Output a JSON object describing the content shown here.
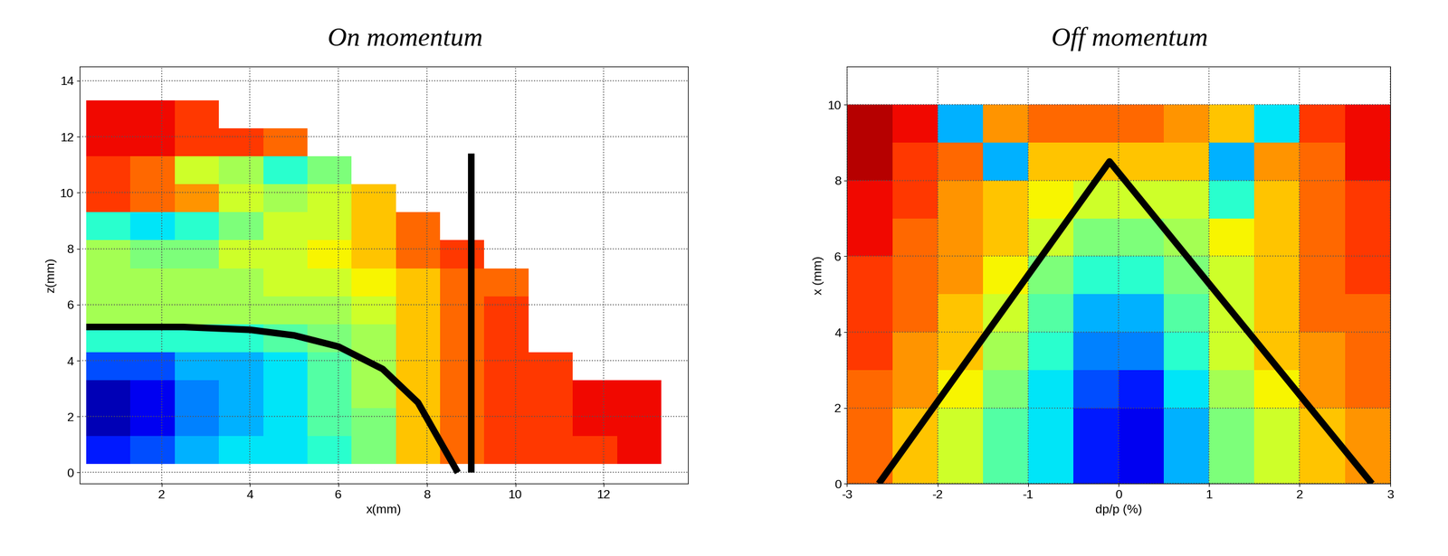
{
  "chart_data": [
    {
      "type": "heatmap",
      "title": "On momentum",
      "x_label": "x(mm)",
      "y_label": "z(mm)",
      "color": "jet",
      "color_range": [
        0,
        1
      ],
      "grid": true,
      "xlim": [
        0.15,
        13.9
      ],
      "ylim": [
        -0.4,
        14.5
      ],
      "xticks": [
        2,
        4,
        6,
        8,
        10,
        12
      ],
      "yticks": [
        0,
        2,
        4,
        6,
        8,
        10,
        12,
        14
      ],
      "x_edges": [
        0.3,
        1.3,
        2.3,
        3.3,
        4.3,
        5.3,
        6.3,
        7.3,
        8.3,
        9.3,
        10.3,
        11.3,
        12.3,
        13.3
      ],
      "y_edges": [
        0.3,
        1.3,
        2.3,
        3.3,
        4.3,
        5.3,
        6.3,
        7.3,
        8.3,
        9.3,
        10.3,
        11.3,
        12.3,
        13.3
      ],
      "cells": [
        [
          0.15,
          0.2,
          0.3,
          0.35,
          0.35,
          0.4,
          0.5,
          0.7,
          0.8,
          0.85,
          0.85,
          0.85,
          0.9
        ],
        [
          0.05,
          0.1,
          0.25,
          0.3,
          0.35,
          0.45,
          0.5,
          0.7,
          0.8,
          0.85,
          0.85,
          0.9,
          0.9
        ],
        [
          0.05,
          0.1,
          0.25,
          0.3,
          0.35,
          0.45,
          0.55,
          0.7,
          0.8,
          0.85,
          0.85,
          0.9,
          0.9
        ],
        [
          0.2,
          0.2,
          0.3,
          0.3,
          0.35,
          0.45,
          0.55,
          0.7,
          0.8,
          0.85,
          0.85,
          null,
          null
        ],
        [
          0.4,
          0.4,
          0.4,
          0.4,
          0.45,
          0.5,
          0.55,
          0.7,
          0.8,
          0.85,
          null,
          null,
          null
        ],
        [
          0.55,
          0.55,
          0.55,
          0.55,
          0.55,
          0.55,
          0.6,
          0.7,
          0.8,
          0.85,
          null,
          null,
          null
        ],
        [
          0.55,
          0.55,
          0.55,
          0.55,
          0.6,
          0.6,
          0.65,
          0.7,
          0.8,
          0.8,
          null,
          null,
          null
        ],
        [
          0.55,
          0.5,
          0.5,
          0.6,
          0.6,
          0.65,
          0.7,
          0.8,
          0.85,
          null,
          null,
          null,
          null
        ],
        [
          0.4,
          0.35,
          0.4,
          0.5,
          0.6,
          0.6,
          0.7,
          0.8,
          null,
          null,
          null,
          null,
          null
        ],
        [
          0.85,
          0.8,
          0.75,
          0.6,
          0.55,
          0.6,
          0.7,
          null,
          null,
          null,
          null,
          null,
          null
        ],
        [
          0.85,
          0.8,
          0.6,
          0.55,
          0.4,
          0.5,
          null,
          null,
          null,
          null,
          null,
          null,
          null
        ],
        [
          0.9,
          0.9,
          0.85,
          0.85,
          0.8,
          null,
          null,
          null,
          null,
          null,
          null,
          null,
          null
        ],
        [
          0.9,
          0.9,
          0.85,
          null,
          null,
          null,
          null,
          null,
          null,
          null,
          null,
          null,
          null
        ]
      ],
      "lines": [
        {
          "x": [
            0.3,
            2.5,
            4.0,
            5.0,
            6.0,
            7.0,
            7.8,
            8.7
          ],
          "y": [
            5.2,
            5.2,
            5.1,
            4.9,
            4.5,
            3.7,
            2.5,
            0.0
          ],
          "color": "#000000"
        },
        {
          "x": [
            9.0,
            9.0
          ],
          "y": [
            0.0,
            11.4
          ],
          "color": "#000000"
        }
      ]
    },
    {
      "type": "heatmap",
      "title": "Off momentum",
      "x_label": "dp/p (%)",
      "y_label": "x (mm)",
      "color": "jet",
      "color_range": [
        0,
        1
      ],
      "grid": true,
      "xlim": [
        -3,
        3
      ],
      "ylim": [
        0,
        11
      ],
      "xticks": [
        -3,
        -2,
        -1,
        0,
        1,
        2,
        3
      ],
      "yticks": [
        0,
        2,
        4,
        6,
        8,
        10
      ],
      "x_edges": [
        -3.0,
        -2.5,
        -2.0,
        -1.5,
        -1.0,
        -0.5,
        0.0,
        0.5,
        1.0,
        1.5,
        2.0,
        2.5,
        3.0
      ],
      "y_edges": [
        0,
        1,
        2,
        3,
        4,
        5,
        6,
        7,
        8,
        9,
        10
      ],
      "cells": [
        [
          0.8,
          0.7,
          0.6,
          0.45,
          0.35,
          0.15,
          0.1,
          0.3,
          0.5,
          0.6,
          0.7,
          0.75
        ],
        [
          0.8,
          0.7,
          0.6,
          0.45,
          0.35,
          0.15,
          0.1,
          0.3,
          0.5,
          0.6,
          0.7,
          0.75
        ],
        [
          0.8,
          0.75,
          0.65,
          0.5,
          0.35,
          0.2,
          0.15,
          0.35,
          0.55,
          0.65,
          0.75,
          0.8
        ],
        [
          0.85,
          0.75,
          0.7,
          0.55,
          0.4,
          0.25,
          0.25,
          0.4,
          0.6,
          0.7,
          0.75,
          0.8
        ],
        [
          0.85,
          0.8,
          0.7,
          0.6,
          0.45,
          0.3,
          0.3,
          0.45,
          0.6,
          0.7,
          0.8,
          0.8
        ],
        [
          0.85,
          0.8,
          0.75,
          0.65,
          0.5,
          0.4,
          0.4,
          0.5,
          0.6,
          0.7,
          0.8,
          0.85
        ],
        [
          0.9,
          0.8,
          0.75,
          0.7,
          0.6,
          0.5,
          0.5,
          0.55,
          0.65,
          0.7,
          0.8,
          0.85
        ],
        [
          0.9,
          0.85,
          0.75,
          0.7,
          0.65,
          0.6,
          0.6,
          0.6,
          0.4,
          0.7,
          0.8,
          0.85
        ],
        [
          0.95,
          0.85,
          0.8,
          0.3,
          0.7,
          0.7,
          0.7,
          0.7,
          0.3,
          0.75,
          0.8,
          0.9
        ],
        [
          0.95,
          0.9,
          0.3,
          0.75,
          0.8,
          0.8,
          0.8,
          0.75,
          0.7,
          0.35,
          0.85,
          0.9
        ]
      ],
      "lines": [
        {
          "x": [
            -2.65,
            -0.1,
            2.8
          ],
          "y": [
            0.0,
            8.5,
            0.0
          ],
          "color": "#000000"
        }
      ]
    }
  ]
}
